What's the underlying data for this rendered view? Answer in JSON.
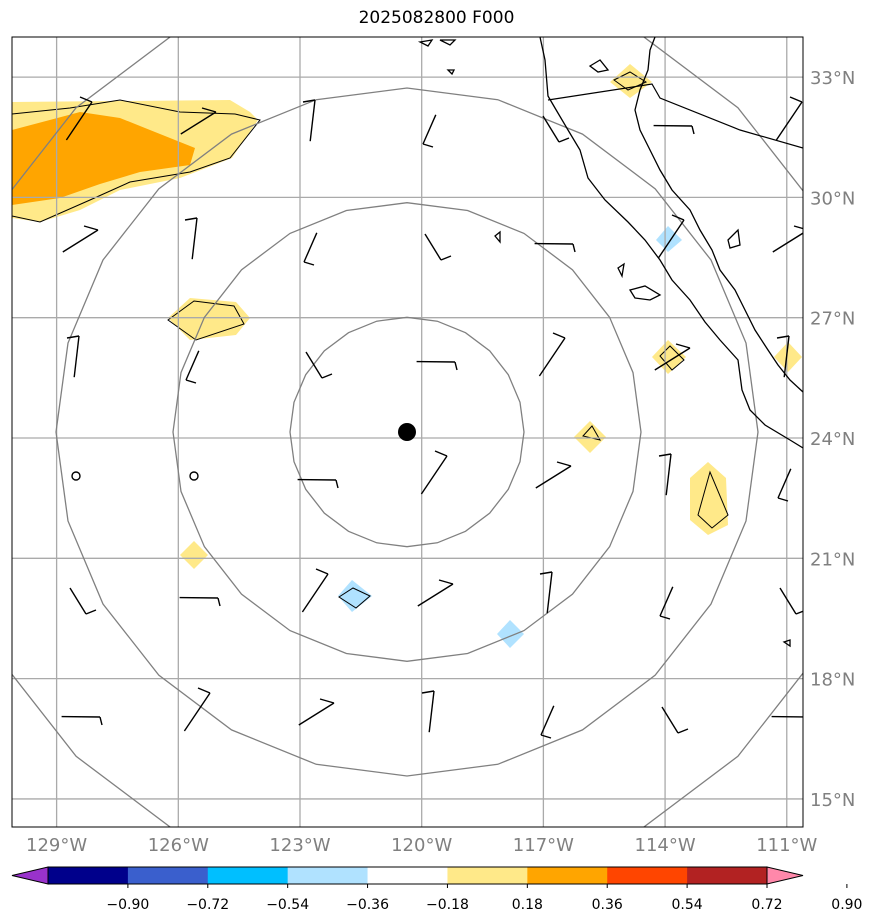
{
  "title": "2025082800 F000",
  "map": {
    "lon_range": [
      -130.1,
      -110.6
    ],
    "lat_range": [
      14.3,
      34.0
    ],
    "center": {
      "lon": -120.6,
      "lat": 24.1
    },
    "range_rings": 4,
    "lon_ticks": [
      {
        "value": -129,
        "label": "129°W"
      },
      {
        "value": -126,
        "label": "126°W"
      },
      {
        "value": -123,
        "label": "123°W"
      },
      {
        "value": -120,
        "label": "120°W"
      },
      {
        "value": -117,
        "label": "117°W"
      },
      {
        "value": -114,
        "label": "114°W"
      },
      {
        "value": -111,
        "label": "111°W"
      }
    ],
    "lat_ticks": [
      {
        "value": 33,
        "label": "33°N"
      },
      {
        "value": 30,
        "label": "30°N"
      },
      {
        "value": 27,
        "label": "27°N"
      },
      {
        "value": 24,
        "label": "24°N"
      },
      {
        "value": 21,
        "label": "21°N"
      },
      {
        "value": 18,
        "label": "18°N"
      },
      {
        "value": 15,
        "label": "15°N"
      }
    ],
    "grid": true
  },
  "colorbar": {
    "colors": [
      "#9932cc",
      "#00008b",
      "#3a5fcd",
      "#00bfff",
      "#b0e2ff",
      "#ffffff",
      "#ffe989",
      "#ffa500",
      "#ff4500",
      "#b22222",
      "#ff88aa"
    ],
    "tick_labels": [
      "−0.90",
      "−0.72",
      "−0.54",
      "−0.36",
      "−0.18",
      "0.18",
      "0.36",
      "0.54",
      "0.72",
      "0.90"
    ],
    "extend": "both"
  },
  "colors": {
    "gridline": "#aaaaaa",
    "ring": "#808080",
    "tick_label": "#808080",
    "coast": "#000000"
  }
}
